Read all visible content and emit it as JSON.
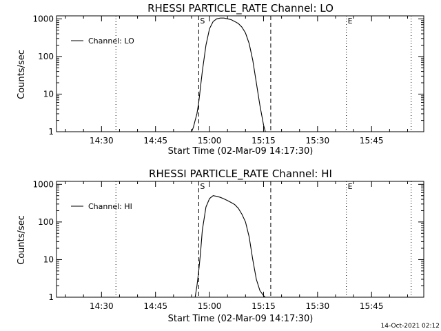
{
  "chart_data": [
    {
      "type": "line",
      "title": "RHESSI PARTICLE_RATE Channel: LO",
      "xlabel": "Start Time (02-Mar-09 14:17:30)",
      "ylabel": "Counts/sec",
      "y_scale": "log",
      "ylim": [
        1,
        1200
      ],
      "xlim": [
        "14:17:30",
        "15:59:30"
      ],
      "x_ticks": [
        "14:30",
        "14:45",
        "15:00",
        "15:15",
        "15:30",
        "15:45"
      ],
      "y_ticks": [
        "1",
        "10",
        "100",
        "1000"
      ],
      "legend": {
        "placement": "top-left",
        "entries": [
          "Channel: LO"
        ]
      },
      "markers": [
        {
          "time": "14:34:00",
          "style": "dotted",
          "label": ""
        },
        {
          "time": "14:57:00",
          "style": "dashed",
          "label": "S"
        },
        {
          "time": "15:17:00",
          "style": "dashed",
          "label": ""
        },
        {
          "time": "15:38:00",
          "style": "dotted",
          "label": "E"
        },
        {
          "time": "15:56:00",
          "style": "dotted",
          "label": ""
        }
      ],
      "series": [
        {
          "name": "Channel: LO",
          "x": [
            "14:55:00",
            "14:55:30",
            "14:56:00",
            "14:56:30",
            "14:57:00",
            "14:58:00",
            "14:59:00",
            "15:00:00",
            "15:01:00",
            "15:02:00",
            "15:03:00",
            "15:04:00",
            "15:05:00",
            "15:06:00",
            "15:07:00",
            "15:08:00",
            "15:09:00",
            "15:10:00",
            "15:11:00",
            "15:12:00",
            "15:13:00",
            "15:14:00",
            "15:15:00",
            "15:15:30"
          ],
          "y": [
            1,
            1.3,
            2,
            3,
            6,
            40,
            200,
            550,
            850,
            1000,
            1050,
            1050,
            1000,
            950,
            850,
            750,
            600,
            420,
            220,
            80,
            20,
            5,
            1.5,
            1
          ]
        }
      ]
    },
    {
      "type": "line",
      "title": "RHESSI PARTICLE_RATE Channel: HI",
      "xlabel": "Start Time (02-Mar-09 14:17:30)",
      "ylabel": "Counts/sec",
      "y_scale": "log",
      "ylim": [
        1,
        1200
      ],
      "xlim": [
        "14:17:30",
        "15:59:30"
      ],
      "x_ticks": [
        "14:30",
        "14:45",
        "15:00",
        "15:15",
        "15:30",
        "15:45"
      ],
      "y_ticks": [
        "1",
        "10",
        "100",
        "1000"
      ],
      "legend": {
        "placement": "top-left",
        "entries": [
          "Channel: HI"
        ]
      },
      "markers": [
        {
          "time": "14:34:00",
          "style": "dotted",
          "label": ""
        },
        {
          "time": "14:57:00",
          "style": "dashed",
          "label": "S"
        },
        {
          "time": "15:17:00",
          "style": "dashed",
          "label": ""
        },
        {
          "time": "15:38:00",
          "style": "dotted",
          "label": "E"
        },
        {
          "time": "15:56:00",
          "style": "dotted",
          "label": ""
        }
      ],
      "series": [
        {
          "name": "Channel: HI",
          "x": [
            "14:56:00",
            "14:56:30",
            "14:57:00",
            "14:57:30",
            "14:58:00",
            "14:59:00",
            "15:00:00",
            "15:01:00",
            "15:02:00",
            "15:03:00",
            "15:04:00",
            "15:05:00",
            "15:06:00",
            "15:07:00",
            "15:08:00",
            "15:09:00",
            "15:10:00",
            "15:11:00",
            "15:12:00",
            "15:13:00",
            "15:14:00",
            "15:15:00",
            "15:15:30"
          ],
          "y": [
            1,
            2,
            5,
            15,
            60,
            250,
            420,
            500,
            480,
            450,
            410,
            370,
            330,
            290,
            230,
            160,
            100,
            40,
            10,
            3,
            1.5,
            1.1,
            1
          ]
        }
      ]
    }
  ],
  "footer": {
    "timestamp": "14-Oct-2021 02:12"
  }
}
